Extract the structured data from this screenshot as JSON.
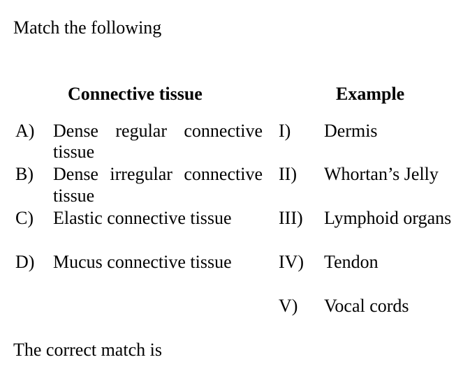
{
  "question": {
    "prompt": "Match the following",
    "footer": "The correct match is"
  },
  "table": {
    "left_header": "Connective tissue",
    "right_header": "Example",
    "left_items": [
      {
        "label": "A)",
        "words": [
          "Dense",
          "regular",
          "connective"
        ],
        "line2": "tissue"
      },
      {
        "label": "B)",
        "words": [
          "Dense",
          "irregular",
          "connective"
        ],
        "line2": "tissue"
      },
      {
        "label": "C)",
        "text": "Elastic connective tissue"
      },
      {
        "label": "D)",
        "text": "Mucus connective tissue"
      }
    ],
    "right_items": [
      {
        "label": "I)",
        "text": "Dermis"
      },
      {
        "label": "II)",
        "text": "Whortan’s Jelly"
      },
      {
        "label": "III)",
        "text": "Lymphoid organs"
      },
      {
        "label": "IV)",
        "text": "Tendon"
      },
      {
        "label": "V)",
        "text": "Vocal cords"
      }
    ]
  }
}
